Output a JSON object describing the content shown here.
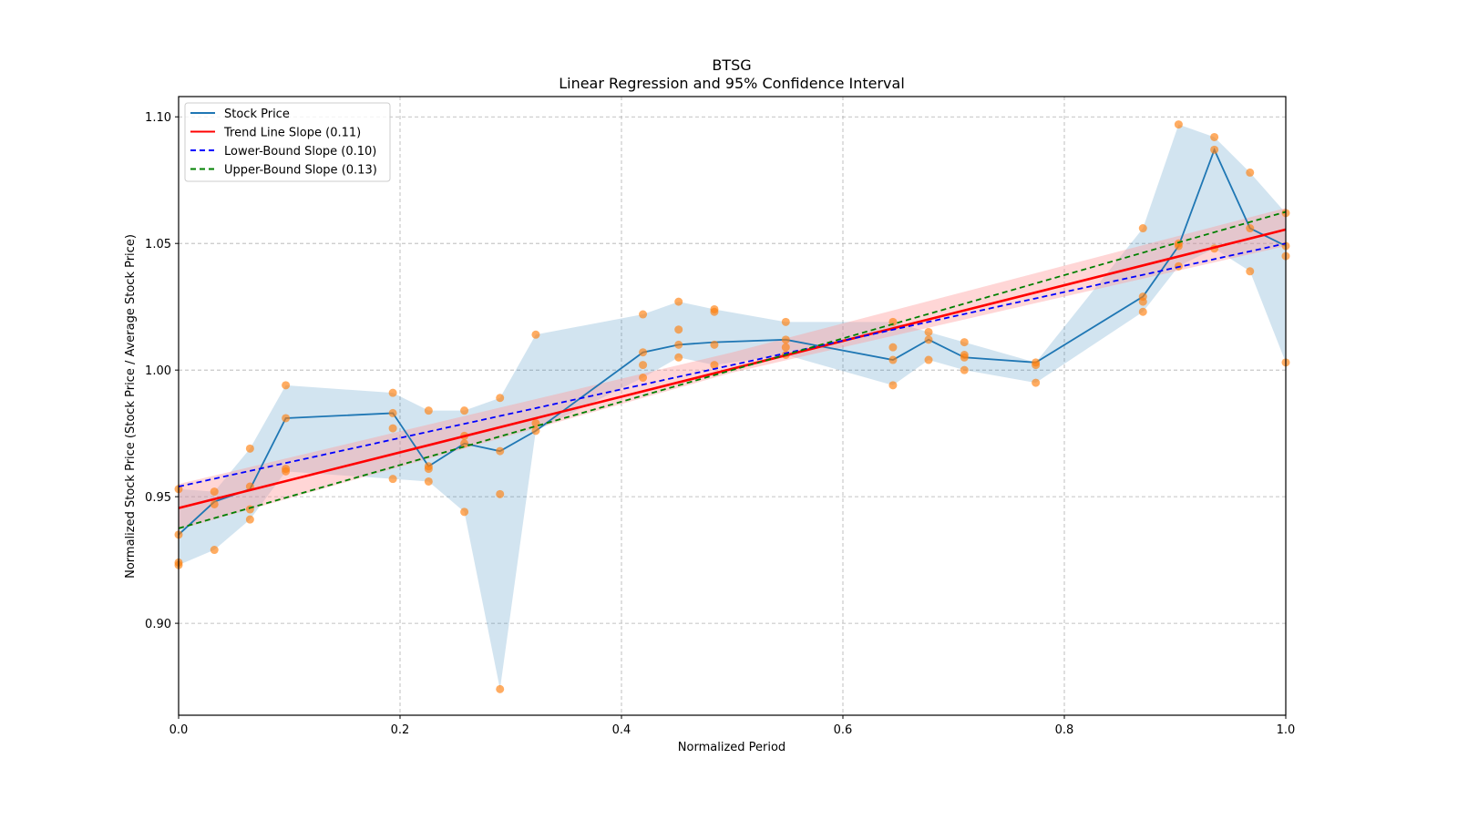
{
  "chart_data": {
    "type": "line",
    "title": "BTSG",
    "subtitle": "Linear Regression and 95% Confidence Interval",
    "xlabel": "Normalized Period",
    "ylabel": "Normalized Stock Price (Stock Price / Average Stock Price)",
    "xlim": [
      0.0,
      1.0
    ],
    "ylim": [
      0.8637,
      1.108
    ],
    "xticks": [
      0.0,
      0.2,
      0.4,
      0.6,
      0.8,
      1.0
    ],
    "xtick_labels": [
      "0.0",
      "0.2",
      "0.4",
      "0.6",
      "0.8",
      "1.0"
    ],
    "yticks": [
      0.9,
      0.95,
      1.0,
      1.05,
      1.1
    ],
    "ytick_labels": [
      "0.90",
      "0.95",
      "1.00",
      "1.05",
      "1.10"
    ],
    "grid": true,
    "legend_position": "top-left",
    "legend": [
      {
        "label": "Stock Price",
        "color": "#1f77b4",
        "style": "solid"
      },
      {
        "label": "Trend Line Slope (0.11)",
        "color": "#ff0000",
        "style": "solid"
      },
      {
        "label": "Lower-Bound Slope (0.10)",
        "color": "#0000ff",
        "style": "dashed"
      },
      {
        "label": "Upper-Bound Slope (0.13)",
        "color": "#008000",
        "style": "dashed"
      }
    ],
    "colors": {
      "stock_line": "#1f77b4",
      "scatter": "#ff7f0e",
      "range_band": "#1f77b4",
      "trend": "#ff0000",
      "trend_band": "#ff9999",
      "lower": "#0000ff",
      "upper": "#008000"
    },
    "stock_price": {
      "x": [
        0.0,
        0.0323,
        0.0645,
        0.0968,
        0.1935,
        0.2258,
        0.2581,
        0.2903,
        0.3226,
        0.4194,
        0.4516,
        0.4839,
        0.5484,
        0.6452,
        0.6774,
        0.7097,
        0.7742,
        0.871,
        0.9032,
        0.9355,
        0.9677,
        1.0
      ],
      "y": [
        0.935,
        0.948,
        0.953,
        0.981,
        0.983,
        0.962,
        0.971,
        0.968,
        0.976,
        1.007,
        1.01,
        1.011,
        1.012,
        1.004,
        1.012,
        1.005,
        1.003,
        1.029,
        1.049,
        1.087,
        1.056,
        1.049
      ]
    },
    "range_band": {
      "x": [
        0.0,
        0.0323,
        0.0645,
        0.0968,
        0.1935,
        0.2258,
        0.2581,
        0.2903,
        0.3226,
        0.4194,
        0.4516,
        0.4839,
        0.5484,
        0.6452,
        0.6774,
        0.7097,
        0.7742,
        0.871,
        0.9032,
        0.9355,
        0.9677,
        1.0
      ],
      "low": [
        0.923,
        0.929,
        0.941,
        0.96,
        0.957,
        0.956,
        0.944,
        0.874,
        0.976,
        0.997,
        1.005,
        1.002,
        1.006,
        0.994,
        1.004,
        1.0,
        0.995,
        1.023,
        1.041,
        1.048,
        1.039,
        1.003
      ],
      "high": [
        0.953,
        0.952,
        0.969,
        0.994,
        0.991,
        0.984,
        0.984,
        0.989,
        1.014,
        1.022,
        1.027,
        1.024,
        1.019,
        1.019,
        1.015,
        1.011,
        1.003,
        1.056,
        1.097,
        1.092,
        1.078,
        1.062
      ]
    },
    "scatter_points": [
      {
        "x": 0.0,
        "y": 0.953
      },
      {
        "x": 0.0,
        "y": 0.935
      },
      {
        "x": 0.0,
        "y": 0.923
      },
      {
        "x": 0.0,
        "y": 0.924
      },
      {
        "x": 0.0323,
        "y": 0.952
      },
      {
        "x": 0.0323,
        "y": 0.947
      },
      {
        "x": 0.0323,
        "y": 0.929
      },
      {
        "x": 0.0645,
        "y": 0.969
      },
      {
        "x": 0.0645,
        "y": 0.954
      },
      {
        "x": 0.0645,
        "y": 0.945
      },
      {
        "x": 0.0645,
        "y": 0.941
      },
      {
        "x": 0.0968,
        "y": 0.994
      },
      {
        "x": 0.0968,
        "y": 0.981
      },
      {
        "x": 0.0968,
        "y": 0.961
      },
      {
        "x": 0.0968,
        "y": 0.96
      },
      {
        "x": 0.1935,
        "y": 0.991
      },
      {
        "x": 0.1935,
        "y": 0.983
      },
      {
        "x": 0.1935,
        "y": 0.977
      },
      {
        "x": 0.1935,
        "y": 0.957
      },
      {
        "x": 0.2258,
        "y": 0.984
      },
      {
        "x": 0.2258,
        "y": 0.962
      },
      {
        "x": 0.2258,
        "y": 0.961
      },
      {
        "x": 0.2258,
        "y": 0.956
      },
      {
        "x": 0.2581,
        "y": 0.984
      },
      {
        "x": 0.2581,
        "y": 0.974
      },
      {
        "x": 0.2581,
        "y": 0.971
      },
      {
        "x": 0.2581,
        "y": 0.944
      },
      {
        "x": 0.2903,
        "y": 0.989
      },
      {
        "x": 0.2903,
        "y": 0.968
      },
      {
        "x": 0.2903,
        "y": 0.951
      },
      {
        "x": 0.2903,
        "y": 0.874
      },
      {
        "x": 0.3226,
        "y": 1.014
      },
      {
        "x": 0.3226,
        "y": 0.979
      },
      {
        "x": 0.3226,
        "y": 0.976
      },
      {
        "x": 0.4194,
        "y": 1.022
      },
      {
        "x": 0.4194,
        "y": 1.007
      },
      {
        "x": 0.4194,
        "y": 1.002
      },
      {
        "x": 0.4194,
        "y": 0.997
      },
      {
        "x": 0.4516,
        "y": 1.027
      },
      {
        "x": 0.4516,
        "y": 1.016
      },
      {
        "x": 0.4516,
        "y": 1.01
      },
      {
        "x": 0.4516,
        "y": 1.005
      },
      {
        "x": 0.4839,
        "y": 1.024
      },
      {
        "x": 0.4839,
        "y": 1.023
      },
      {
        "x": 0.4839,
        "y": 1.01
      },
      {
        "x": 0.4839,
        "y": 1.002
      },
      {
        "x": 0.5484,
        "y": 1.019
      },
      {
        "x": 0.5484,
        "y": 1.012
      },
      {
        "x": 0.5484,
        "y": 1.009
      },
      {
        "x": 0.5484,
        "y": 1.006
      },
      {
        "x": 0.6452,
        "y": 1.019
      },
      {
        "x": 0.6452,
        "y": 1.009
      },
      {
        "x": 0.6452,
        "y": 1.004
      },
      {
        "x": 0.6452,
        "y": 0.994
      },
      {
        "x": 0.6774,
        "y": 1.015
      },
      {
        "x": 0.6774,
        "y": 1.012
      },
      {
        "x": 0.6774,
        "y": 1.004
      },
      {
        "x": 0.7097,
        "y": 1.011
      },
      {
        "x": 0.7097,
        "y": 1.006
      },
      {
        "x": 0.7097,
        "y": 1.005
      },
      {
        "x": 0.7097,
        "y": 1.0
      },
      {
        "x": 0.7742,
        "y": 1.003
      },
      {
        "x": 0.7742,
        "y": 1.002
      },
      {
        "x": 0.7742,
        "y": 0.995
      },
      {
        "x": 0.871,
        "y": 1.056
      },
      {
        "x": 0.871,
        "y": 1.029
      },
      {
        "x": 0.871,
        "y": 1.027
      },
      {
        "x": 0.871,
        "y": 1.023
      },
      {
        "x": 0.9032,
        "y": 1.097
      },
      {
        "x": 0.9032,
        "y": 1.05
      },
      {
        "x": 0.9032,
        "y": 1.049
      },
      {
        "x": 0.9032,
        "y": 1.041
      },
      {
        "x": 0.9355,
        "y": 1.092
      },
      {
        "x": 0.9355,
        "y": 1.087
      },
      {
        "x": 0.9355,
        "y": 1.048
      },
      {
        "x": 0.9677,
        "y": 1.078
      },
      {
        "x": 0.9677,
        "y": 1.056
      },
      {
        "x": 0.9677,
        "y": 1.039
      },
      {
        "x": 1.0,
        "y": 1.062
      },
      {
        "x": 1.0,
        "y": 1.049
      },
      {
        "x": 1.0,
        "y": 1.045
      },
      {
        "x": 1.0,
        "y": 1.003
      }
    ],
    "trend_line": {
      "intercept": 0.9455,
      "slope": 0.11
    },
    "lower_bound_line": {
      "intercept": 0.954,
      "slope": 0.096
    },
    "upper_bound_line": {
      "intercept": 0.9375,
      "slope": 0.125
    },
    "trend_band": {
      "x": [
        0.0,
        0.5,
        1.0
      ],
      "low": [
        0.937,
        0.999,
        1.049
      ],
      "high": [
        0.955,
        1.007,
        1.064
      ]
    }
  }
}
